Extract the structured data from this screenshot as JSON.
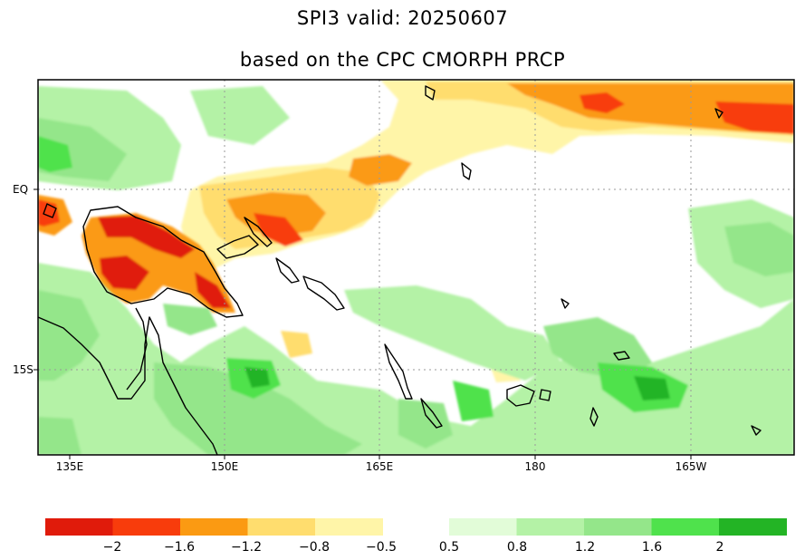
{
  "title_line1": "SPI3  valid: 20250607",
  "title_line2": "based on the CPC CMORPH PRCP",
  "axes": {
    "x_ticks": [
      "135E",
      "150E",
      "165E",
      "180",
      "165W"
    ],
    "y_ticks": [
      "EQ",
      "15S"
    ]
  },
  "colorbar": {
    "negative_colors": [
      "#e01b0b",
      "#f83c0c",
      "#fb9a12",
      "#ffdd6e",
      "#fff5a8"
    ],
    "positive_colors": [
      "#e2fcd8",
      "#b4f2a6",
      "#94e68a",
      "#4fe24c",
      "#23b425"
    ],
    "labels": [
      "−2",
      "−1.6",
      "−1.2",
      "−0.8",
      "−0.5",
      "0.5",
      "0.8",
      "1.2",
      "1.6",
      "2"
    ]
  },
  "map_colors": {
    "background": "#ffffff",
    "grid": "#9a9a9a",
    "coast": "#000000"
  }
}
